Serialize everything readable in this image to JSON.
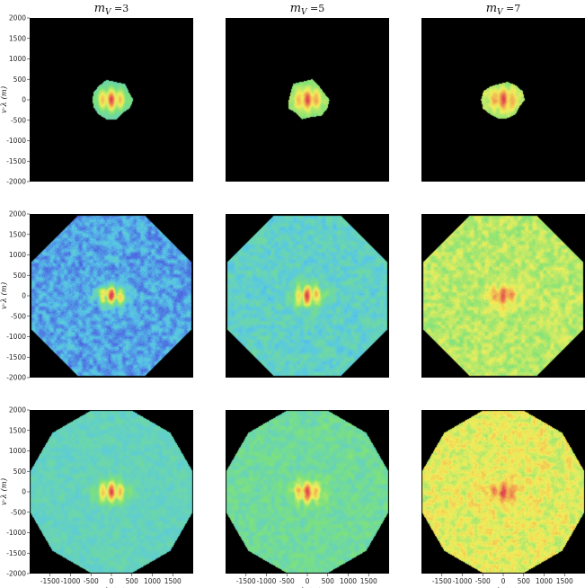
{
  "chart_data": {
    "type": "heatmap",
    "layout": {
      "rows": 3,
      "cols": 3
    },
    "column_titles": [
      "m_V = 3",
      "m_V = 5",
      "m_V = 7"
    ],
    "column_title_parts": [
      {
        "m": "m",
        "sub": "V",
        "eq": "=3"
      },
      {
        "m": "m",
        "sub": "V",
        "eq": "=5"
      },
      {
        "m": "m",
        "sub": "V",
        "eq": "=7"
      }
    ],
    "xlabel": "u·λ (m)",
    "ylabel": "v·λ (m)",
    "xlim": [
      -2000,
      2000
    ],
    "ylim": [
      -2000,
      2000
    ],
    "xticks": [
      "-1500",
      "-1000",
      "-500",
      "0",
      "500",
      "1000",
      "1500"
    ],
    "xtick_values": [
      -1500,
      -1000,
      -500,
      0,
      500,
      1000,
      1500
    ],
    "yticks": [
      "2000",
      "1500",
      "1000",
      "500",
      "0",
      "-500",
      "-1000",
      "-1500",
      "-2000"
    ],
    "ytick_values": [
      2000,
      1500,
      1000,
      500,
      0,
      -500,
      -1000,
      -1500,
      -2000
    ],
    "background_color": "#000000",
    "colormap": [
      "#4c5fe0",
      "#57c8e8",
      "#7ee27a",
      "#f4ef5a",
      "#f0a050",
      "#e04050"
    ],
    "panels": [
      {
        "row": 0,
        "col": 0,
        "coverage_radius": 500,
        "coverage_shape": "small-irregular",
        "base_level": 0.3,
        "fringe_peak": 1.0,
        "fringe_count": 3,
        "noise": 0.03
      },
      {
        "row": 0,
        "col": 1,
        "coverage_radius": 500,
        "coverage_shape": "small-irregular",
        "base_level": 0.4,
        "fringe_peak": 1.0,
        "fringe_count": 3,
        "noise": 0.05
      },
      {
        "row": 0,
        "col": 2,
        "coverage_radius": 480,
        "coverage_shape": "small-irregular",
        "base_level": 0.46,
        "fringe_peak": 1.0,
        "fringe_count": 3,
        "noise": 0.07
      },
      {
        "row": 1,
        "col": 0,
        "coverage_radius": 2000,
        "coverage_shape": "octagon",
        "base_level": 0.13,
        "fringe_peak": 1.0,
        "fringe_count": 5,
        "noise": 0.12
      },
      {
        "row": 1,
        "col": 1,
        "coverage_radius": 2000,
        "coverage_shape": "octagon",
        "base_level": 0.26,
        "fringe_peak": 1.0,
        "fringe_count": 3,
        "noise": 0.08
      },
      {
        "row": 1,
        "col": 2,
        "coverage_radius": 2000,
        "coverage_shape": "octagon",
        "base_level": 0.5,
        "fringe_peak": 1.0,
        "fringe_count": 1,
        "noise": 0.1
      },
      {
        "row": 2,
        "col": 0,
        "coverage_radius": 2000,
        "coverage_shape": "dodecagon",
        "base_level": 0.28,
        "fringe_peak": 1.0,
        "fringe_count": 5,
        "noise": 0.05
      },
      {
        "row": 2,
        "col": 1,
        "coverage_radius": 2000,
        "coverage_shape": "dodecagon",
        "base_level": 0.34,
        "fringe_peak": 1.0,
        "fringe_count": 3,
        "noise": 0.07
      },
      {
        "row": 2,
        "col": 2,
        "coverage_radius": 2000,
        "coverage_shape": "dodecagon",
        "base_level": 0.58,
        "fringe_peak": 1.0,
        "fringe_count": 1,
        "noise": 0.12
      }
    ]
  }
}
